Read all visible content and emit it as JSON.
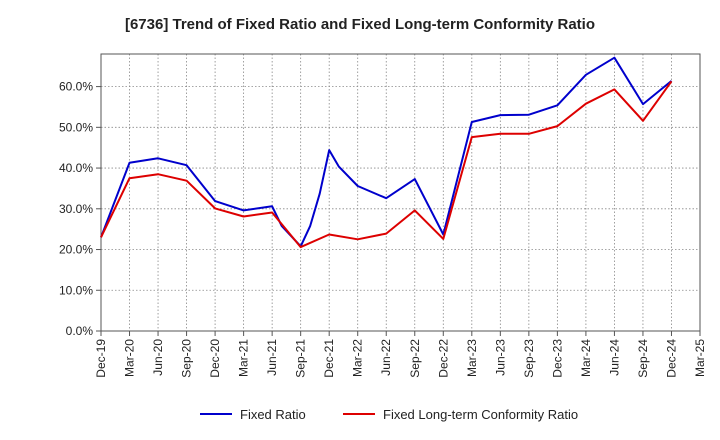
{
  "chart_data": {
    "type": "line",
    "title": "[6736]  Trend of Fixed Ratio and Fixed Long-term Conformity Ratio",
    "xlabel": "",
    "ylabel": "",
    "ylim": [
      0,
      68
    ],
    "yticks": [
      0,
      10,
      20,
      30,
      40,
      50,
      60
    ],
    "ytick_labels": [
      "0.0%",
      "10.0%",
      "20.0%",
      "30.0%",
      "40.0%",
      "50.0%",
      "60.0%"
    ],
    "grid": true,
    "legend_position": "bottom",
    "x_tick_labels": [
      "Dec-19",
      "Mar-20",
      "Jun-20",
      "Sep-20",
      "Dec-20",
      "Mar-21",
      "Jun-21",
      "Sep-21",
      "Dec-21",
      "Mar-22",
      "Jun-22",
      "Sep-22",
      "Dec-22",
      "Mar-23",
      "Jun-23",
      "Sep-23",
      "Dec-23",
      "Mar-24",
      "Jun-24",
      "Sep-24",
      "Dec-24",
      "Mar-25"
    ],
    "series": [
      {
        "name": "Fixed Ratio",
        "color": "#0000cc",
        "points": [
          [
            "Dec-19",
            23.0
          ],
          [
            "Mar-20",
            41.3
          ],
          [
            "Jun-20",
            42.4
          ],
          [
            "Sep-20",
            40.7
          ],
          [
            "Dec-20",
            31.9
          ],
          [
            "Mar-21",
            29.6
          ],
          [
            "Jun-21",
            30.6
          ],
          [
            "Jul-21",
            25.8
          ],
          [
            "Sep-21",
            20.8
          ],
          [
            "Oct-21",
            25.8
          ],
          [
            "Nov-21",
            33.7
          ],
          [
            "Dec-21",
            44.4
          ],
          [
            "Jan-22",
            40.4
          ],
          [
            "Mar-22",
            35.6
          ],
          [
            "Jun-22",
            32.6
          ],
          [
            "Sep-22",
            37.3
          ],
          [
            "Dec-22",
            23.7
          ],
          [
            "Mar-23",
            51.3
          ],
          [
            "Jun-23",
            53.0
          ],
          [
            "Sep-23",
            53.1
          ],
          [
            "Dec-23",
            55.4
          ],
          [
            "Mar-24",
            62.9
          ],
          [
            "Jun-24",
            67.1
          ],
          [
            "Sep-24",
            55.7
          ],
          [
            "Dec-24",
            61.4
          ]
        ]
      },
      {
        "name": "Fixed Long-term Conformity Ratio",
        "color": "#dd0000",
        "points": [
          [
            "Dec-19",
            23.0
          ],
          [
            "Mar-20",
            37.5
          ],
          [
            "Jun-20",
            38.5
          ],
          [
            "Sep-20",
            36.9
          ],
          [
            "Dec-20",
            30.1
          ],
          [
            "Mar-21",
            28.1
          ],
          [
            "Jun-21",
            29.1
          ],
          [
            "Sep-21",
            20.6
          ],
          [
            "Dec-21",
            23.7
          ],
          [
            "Mar-22",
            22.5
          ],
          [
            "Jun-22",
            23.9
          ],
          [
            "Sep-22",
            29.6
          ],
          [
            "Dec-22",
            22.6
          ],
          [
            "Mar-23",
            47.6
          ],
          [
            "Jun-23",
            48.4
          ],
          [
            "Sep-23",
            48.4
          ],
          [
            "Dec-23",
            50.3
          ],
          [
            "Mar-24",
            55.8
          ],
          [
            "Jun-24",
            59.3
          ],
          [
            "Sep-24",
            51.6
          ],
          [
            "Dec-24",
            61.3
          ]
        ]
      }
    ]
  }
}
